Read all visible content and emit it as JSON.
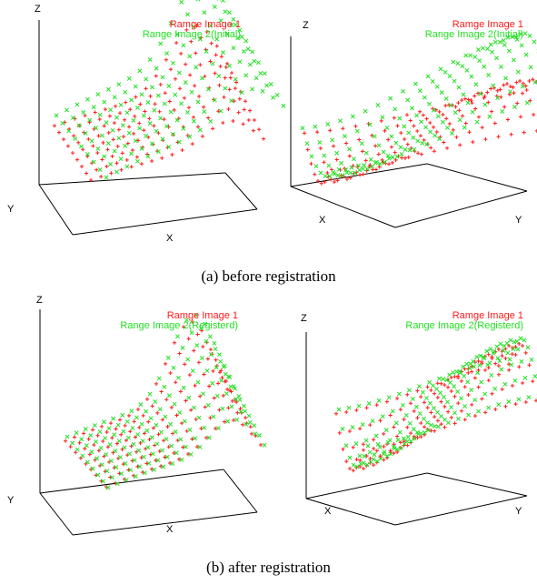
{
  "figure": {
    "captions": {
      "top": "(a) before registration",
      "bottom": "(b) after registration"
    },
    "colors": {
      "image1": "#ff1a1a",
      "image2": "#22e022",
      "axis": "#000000"
    },
    "panels": [
      {
        "id": "a-left",
        "legend": [
          "Ramge Image 1",
          "Range Image 2(Initial)"
        ],
        "axes": {
          "z": "Z",
          "x": "X",
          "y": "Y"
        }
      },
      {
        "id": "a-right",
        "legend": [
          "Ramge Image 1",
          "Range Image 2(Initial)"
        ],
        "axes": {
          "z": "Z",
          "x": "X",
          "y": "Y"
        }
      },
      {
        "id": "b-left",
        "legend": [
          "Ramge Image 1",
          "Range Image 2(Registerd)"
        ],
        "axes": {
          "z": "Z",
          "x": "X",
          "y": "Y"
        }
      },
      {
        "id": "b-right",
        "legend": [
          "Ramge Image 1",
          "Range Image 2(Registerd)"
        ],
        "axes": {
          "z": "Z",
          "x": "X",
          "y": "Y"
        }
      }
    ]
  }
}
